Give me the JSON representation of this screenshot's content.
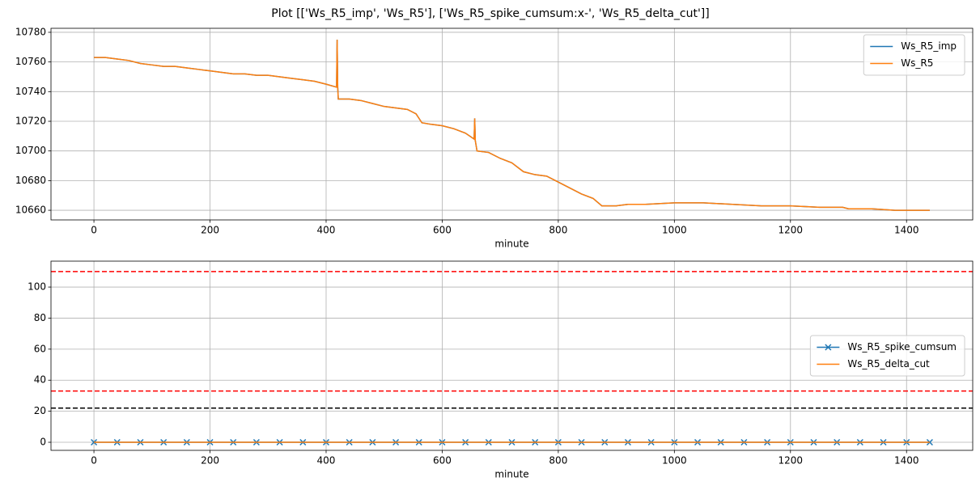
{
  "title": "Plot [['Ws_R5_imp', 'Ws_R5'], ['Ws_R5_spike_cumsum:x-', 'Ws_R5_delta_cut']]",
  "chart_data": [
    {
      "type": "line",
      "xlabel": "minute",
      "grid": true,
      "legend": "upper right",
      "xlim": [
        -74,
        1514
      ],
      "ylim": [
        10653.5,
        10782.7
      ],
      "xticks": [
        0,
        200,
        400,
        600,
        800,
        1000,
        1200,
        1400
      ],
      "yticks": [
        10660,
        10680,
        10700,
        10720,
        10740,
        10760,
        10780
      ],
      "x": [
        0,
        20,
        40,
        60,
        80,
        100,
        120,
        140,
        160,
        180,
        200,
        220,
        240,
        260,
        280,
        300,
        320,
        340,
        360,
        380,
        400,
        418,
        419,
        420,
        421,
        440,
        460,
        480,
        500,
        520,
        540,
        555,
        565,
        580,
        600,
        620,
        640,
        655,
        656,
        657,
        660,
        680,
        700,
        720,
        740,
        760,
        780,
        800,
        820,
        840,
        860,
        875,
        900,
        920,
        950,
        1000,
        1050,
        1100,
        1150,
        1200,
        1250,
        1290,
        1300,
        1340,
        1380,
        1440
      ],
      "series": [
        {
          "name": "Ws_R5_imp",
          "color": "#1f77b4",
          "values": [
            10763,
            10763,
            10762,
            10761,
            10759,
            10758,
            10757,
            10757,
            10756,
            10755,
            10754,
            10753,
            10752,
            10752,
            10751,
            10751,
            10750,
            10749,
            10748,
            10747,
            10745,
            10743,
            10775,
            10743,
            10735,
            10735,
            10734,
            10732,
            10730,
            10729,
            10728,
            10725,
            10719,
            10718,
            10717,
            10715,
            10712,
            10708,
            10722,
            10707,
            10700,
            10699,
            10695,
            10692,
            10686,
            10684,
            10683,
            10679,
            10675,
            10671,
            10668,
            10663,
            10663,
            10664,
            10664,
            10665,
            10665,
            10664,
            10663,
            10663,
            10662,
            10662,
            10661,
            10661,
            10660,
            10660
          ]
        },
        {
          "name": "Ws_R5",
          "color": "#ff7f0e",
          "values": [
            10763,
            10763,
            10762,
            10761,
            10759,
            10758,
            10757,
            10757,
            10756,
            10755,
            10754,
            10753,
            10752,
            10752,
            10751,
            10751,
            10750,
            10749,
            10748,
            10747,
            10745,
            10743,
            10775,
            10743,
            10735,
            10735,
            10734,
            10732,
            10730,
            10729,
            10728,
            10725,
            10719,
            10718,
            10717,
            10715,
            10712,
            10708,
            10722,
            10707,
            10700,
            10699,
            10695,
            10692,
            10686,
            10684,
            10683,
            10679,
            10675,
            10671,
            10668,
            10663,
            10663,
            10664,
            10664,
            10665,
            10665,
            10664,
            10663,
            10663,
            10662,
            10662,
            10661,
            10661,
            10660,
            10660
          ]
        }
      ]
    },
    {
      "type": "line",
      "xlabel": "minute",
      "grid": true,
      "legend": "center right",
      "xlim": [
        -74,
        1514
      ],
      "ylim": [
        -5.2,
        116.7
      ],
      "xticks": [
        0,
        200,
        400,
        600,
        800,
        1000,
        1200,
        1400
      ],
      "yticks": [
        0,
        20,
        40,
        60,
        80,
        100
      ],
      "hlines": [
        {
          "value": 110,
          "color": "#ff0000"
        },
        {
          "value": 33,
          "color": "#ff0000"
        },
        {
          "value": 22,
          "color": "#000000"
        }
      ],
      "x": [
        0,
        40,
        80,
        120,
        160,
        200,
        240,
        280,
        320,
        360,
        400,
        440,
        480,
        520,
        560,
        600,
        640,
        680,
        720,
        760,
        800,
        840,
        880,
        920,
        960,
        1000,
        1040,
        1080,
        1120,
        1160,
        1200,
        1240,
        1280,
        1320,
        1360,
        1400,
        1440
      ],
      "series": [
        {
          "name": "Ws_R5_spike_cumsum",
          "color": "#1f77b4",
          "marker": "x",
          "values": [
            0,
            0,
            0,
            0,
            0,
            0,
            0,
            0,
            0,
            0,
            0,
            0,
            0,
            0,
            0,
            0,
            0,
            0,
            0,
            0,
            0,
            0,
            0,
            0,
            0,
            0,
            0,
            0,
            0,
            0,
            0,
            0,
            0,
            0,
            0,
            0,
            0
          ]
        },
        {
          "name": "Ws_R5_delta_cut",
          "color": "#ff7f0e",
          "values": [
            0,
            0,
            0,
            0,
            0,
            0,
            0,
            0,
            0,
            0,
            0,
            0,
            0,
            0,
            0,
            0,
            0,
            0,
            0,
            0,
            0,
            0,
            0,
            0,
            0,
            0,
            0,
            0,
            0,
            0,
            0,
            0,
            0,
            0,
            0,
            0,
            0
          ]
        }
      ]
    }
  ]
}
